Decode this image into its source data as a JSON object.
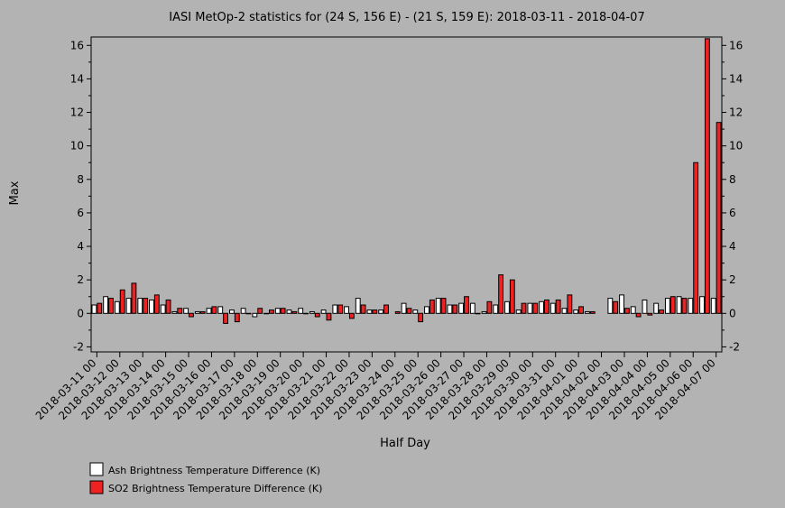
{
  "chart_data": {
    "type": "bar",
    "title": "IASI MetOp-2 statistics for (24 S, 156 E) - (21 S, 159 E): 2018-03-11 - 2018-04-07",
    "xlabel": "Half Day",
    "ylabel": "Max",
    "ylim": [
      -2.3,
      16.5
    ],
    "yticks": [
      -2,
      0,
      2,
      4,
      6,
      8,
      10,
      12,
      14,
      16
    ],
    "y_mirrored_right_axis": true,
    "grid": false,
    "legend_position": "bottom-left",
    "x_tick_labels": [
      "2018-03-11 00",
      "2018-03-12 00",
      "2018-03-13 00",
      "2018-03-14 00",
      "2018-03-15 00",
      "2018-03-16 00",
      "2018-03-17 00",
      "2018-03-18 00",
      "2018-03-19 00",
      "2018-03-20 00",
      "2018-03-21 00",
      "2018-03-22 00",
      "2018-03-23 00",
      "2018-03-24 00",
      "2018-03-25 00",
      "2018-03-26 00",
      "2018-03-27 00",
      "2018-03-28 00",
      "2018-03-29 00",
      "2018-03-30 00",
      "2018-03-31 00",
      "2018-04-01 00",
      "2018-04-02 00",
      "2018-04-03 00",
      "2018-04-04 00",
      "2018-04-05 00",
      "2018-04-06 00",
      "2018-04-07 00"
    ],
    "categories": [
      "2018-03-11 00",
      "2018-03-11 12",
      "2018-03-12 00",
      "2018-03-12 12",
      "2018-03-13 00",
      "2018-03-13 12",
      "2018-03-14 00",
      "2018-03-14 12",
      "2018-03-15 00",
      "2018-03-15 12",
      "2018-03-16 00",
      "2018-03-16 12",
      "2018-03-17 00",
      "2018-03-17 12",
      "2018-03-18 00",
      "2018-03-18 12",
      "2018-03-19 00",
      "2018-03-19 12",
      "2018-03-20 00",
      "2018-03-20 12",
      "2018-03-21 00",
      "2018-03-21 12",
      "2018-03-22 00",
      "2018-03-22 12",
      "2018-03-23 00",
      "2018-03-23 12",
      "2018-03-24 00",
      "2018-03-24 12",
      "2018-03-25 00",
      "2018-03-25 12",
      "2018-03-26 00",
      "2018-03-26 12",
      "2018-03-27 00",
      "2018-03-27 12",
      "2018-03-28 00",
      "2018-03-28 12",
      "2018-03-29 00",
      "2018-03-29 12",
      "2018-03-30 00",
      "2018-03-30 12",
      "2018-03-31 00",
      "2018-03-31 12",
      "2018-04-01 00",
      "2018-04-01 12",
      "2018-04-02 00",
      "2018-04-02 12",
      "2018-04-03 00",
      "2018-04-03 12",
      "2018-04-04 00",
      "2018-04-04 12",
      "2018-04-05 00",
      "2018-04-05 12",
      "2018-04-06 00",
      "2018-04-06 12",
      "2018-04-07 00"
    ],
    "series": [
      {
        "name": "Ash Brightness Temperature Difference (K)",
        "color": "#ffffff",
        "values": [
          0.5,
          1.0,
          0.7,
          0.9,
          0.9,
          0.8,
          0.5,
          0.1,
          0.3,
          0.1,
          0.3,
          0.4,
          0.2,
          0.3,
          -0.2,
          0.0,
          0.3,
          0.2,
          0.3,
          0.1,
          0.2,
          0.5,
          0.4,
          0.9,
          0.2,
          0.2,
          null,
          0.6,
          0.2,
          0.4,
          0.9,
          0.5,
          0.6,
          0.6,
          0.1,
          0.5,
          0.7,
          0.2,
          0.6,
          0.7,
          0.6,
          0.3,
          0.2,
          0.1,
          null,
          0.9,
          1.1,
          0.4,
          0.8,
          0.6,
          0.9,
          1.0,
          0.9,
          1.0,
          0.9
        ]
      },
      {
        "name": "SO2 Brightness Temperature Difference (K)",
        "color": "#ee2222",
        "values": [
          0.6,
          0.9,
          1.4,
          1.8,
          0.9,
          1.1,
          0.8,
          0.3,
          -0.2,
          0.1,
          0.4,
          -0.6,
          -0.5,
          0.0,
          0.3,
          0.2,
          0.3,
          0.1,
          0.0,
          -0.2,
          -0.4,
          0.5,
          -0.3,
          0.5,
          0.2,
          0.5,
          0.1,
          0.3,
          -0.5,
          0.8,
          0.9,
          0.5,
          1.0,
          0.0,
          0.7,
          2.3,
          2.0,
          0.6,
          0.6,
          0.8,
          0.8,
          1.1,
          0.4,
          0.1,
          null,
          0.7,
          0.3,
          -0.2,
          -0.1,
          0.2,
          1.0,
          0.9,
          9.0,
          16.4,
          11.4
        ]
      }
    ]
  }
}
